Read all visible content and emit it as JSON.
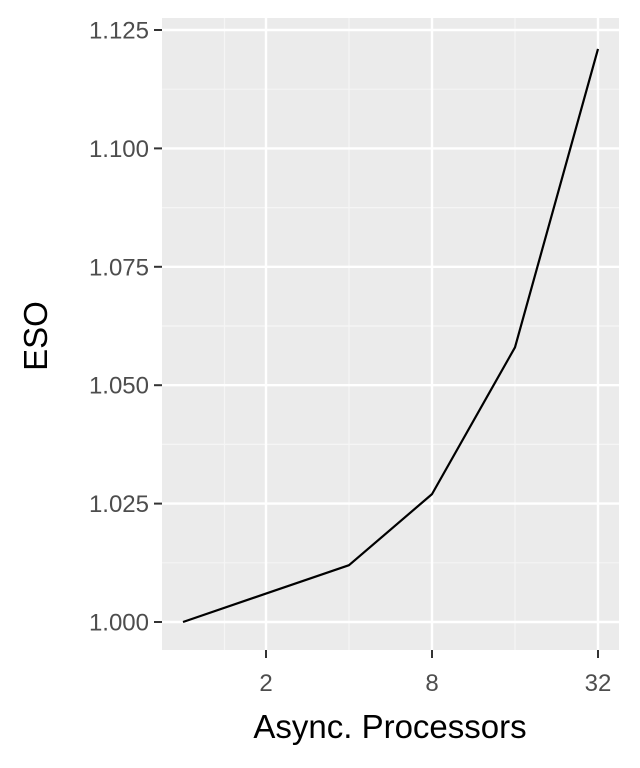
{
  "chart_data": {
    "type": "line",
    "xlabel": "Async. Processors",
    "ylabel": "ESO",
    "x_scale": "log2",
    "x": [
      1,
      2,
      4,
      8,
      16,
      32
    ],
    "series": [
      {
        "values": [
          1.0,
          1.006,
          1.012,
          1.027,
          1.058,
          1.121
        ]
      }
    ],
    "xlim": [
      1,
      32
    ],
    "ylim": [
      1.0,
      1.125
    ],
    "x_ticks": [
      2,
      8,
      32
    ],
    "x_tick_labels": [
      "2",
      "8",
      "32"
    ],
    "y_ticks": [
      1.0,
      1.025,
      1.05,
      1.075,
      1.1,
      1.125
    ],
    "y_tick_labels": [
      "1.000",
      "1.025",
      "1.050",
      "1.075",
      "1.100",
      "1.125"
    ],
    "grid": true,
    "colors": {
      "panel_background": "#ebebeb",
      "grid_major": "#ffffff",
      "grid_minor": "#f5f5f5",
      "line": "#000000",
      "tick_mark": "#333333"
    }
  }
}
